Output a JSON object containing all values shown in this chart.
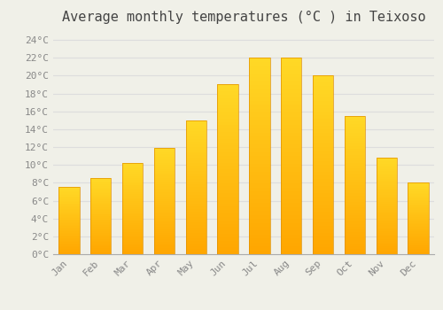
{
  "title": "Average monthly temperatures (°C ) in Teixoso",
  "months": [
    "Jan",
    "Feb",
    "Mar",
    "Apr",
    "May",
    "Jun",
    "Jul",
    "Aug",
    "Sep",
    "Oct",
    "Nov",
    "Dec"
  ],
  "values": [
    7.5,
    8.5,
    10.2,
    11.9,
    15.0,
    19.0,
    22.0,
    22.0,
    20.0,
    15.5,
    10.8,
    8.0
  ],
  "bar_color_top": "#FFB700",
  "bar_color_bottom": "#FFA000",
  "background_color": "#F0F0E8",
  "grid_color": "#DDDDDD",
  "ylim": [
    0,
    25
  ],
  "yticks": [
    0,
    2,
    4,
    6,
    8,
    10,
    12,
    14,
    16,
    18,
    20,
    22,
    24
  ],
  "title_fontsize": 11,
  "tick_fontsize": 8,
  "tick_label_color": "#888888",
  "title_color": "#444444"
}
